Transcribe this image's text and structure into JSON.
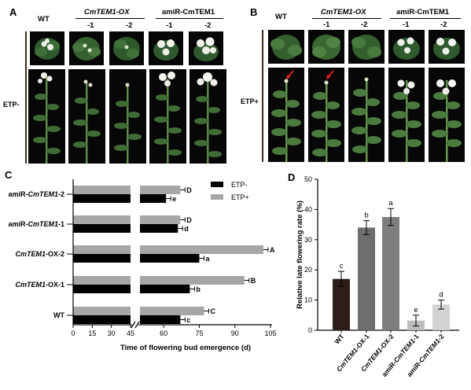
{
  "panels": {
    "A": {
      "letter": "A",
      "col_labels": {
        "wt": "WT",
        "ox_group": "CmTEM1-OX",
        "amir_group": "amiR-CmTEM1",
        "ox1": "-1",
        "ox2": "-2",
        "amir1": "-1",
        "amir2": "-2"
      },
      "row_label": "ETP-"
    },
    "B": {
      "letter": "B",
      "col_labels": {
        "wt": "WT",
        "ox_group": "CmTEM1-OX",
        "amir_group": "amiR-CmTEM1",
        "ox1": "-1",
        "ox2": "-2",
        "amir1": "-1",
        "amir2": "-2"
      },
      "row_label": "ETP+"
    },
    "C": {
      "letter": "C"
    },
    "D": {
      "letter": "D"
    }
  },
  "chart_data": [
    {
      "type": "bar",
      "orientation": "horizontal",
      "panel": "C",
      "categories": [
        "amiR-CmTEM1-2",
        "amiR-CmTEM1-1",
        "CmTEM1-OX-2",
        "CmTEM1-OX-1",
        "WT"
      ],
      "series": [
        {
          "name": "ETP-",
          "color": "#000000",
          "values": [
            61,
            66,
            75,
            71,
            67
          ],
          "letters": [
            "e",
            "d",
            "a",
            "b",
            "c"
          ]
        },
        {
          "name": "ETP+",
          "color": "#a6a6a6",
          "values": [
            67,
            67,
            102,
            94,
            77
          ],
          "letters": [
            "D",
            "D",
            "A",
            "B",
            "C"
          ]
        }
      ],
      "xlabel": "Time of flowering bud emergence (d)",
      "xticks_left": [
        "0",
        "15",
        "30",
        "45"
      ],
      "xticks_right": [
        "60",
        "75",
        "90",
        "105"
      ],
      "axis_break": [
        45,
        50
      ],
      "xlim": [
        0,
        105
      ],
      "legend": "top-right"
    },
    {
      "type": "bar",
      "panel": "D",
      "categories": [
        "WT",
        "CmTEM1-OX-1",
        "CmTEM1-OX-2",
        "amiR-CmTEM1-1",
        "amiR-CmTEM1-2"
      ],
      "values": [
        17,
        34,
        37.5,
        3.2,
        8.5
      ],
      "errors": [
        2.5,
        2.3,
        2.8,
        1.8,
        1.5
      ],
      "letters": [
        "c",
        "b",
        "a",
        "e",
        "d"
      ],
      "colors": [
        "#2e1e1a",
        "#6e6e6e",
        "#7e7e7e",
        "#bdbdbd",
        "#d2d2d2"
      ],
      "ylabel": "Relative late flowering rate (%)",
      "yticks": [
        "0",
        "10",
        "20",
        "30",
        "40",
        "50"
      ],
      "ylim": [
        0,
        50
      ]
    }
  ]
}
